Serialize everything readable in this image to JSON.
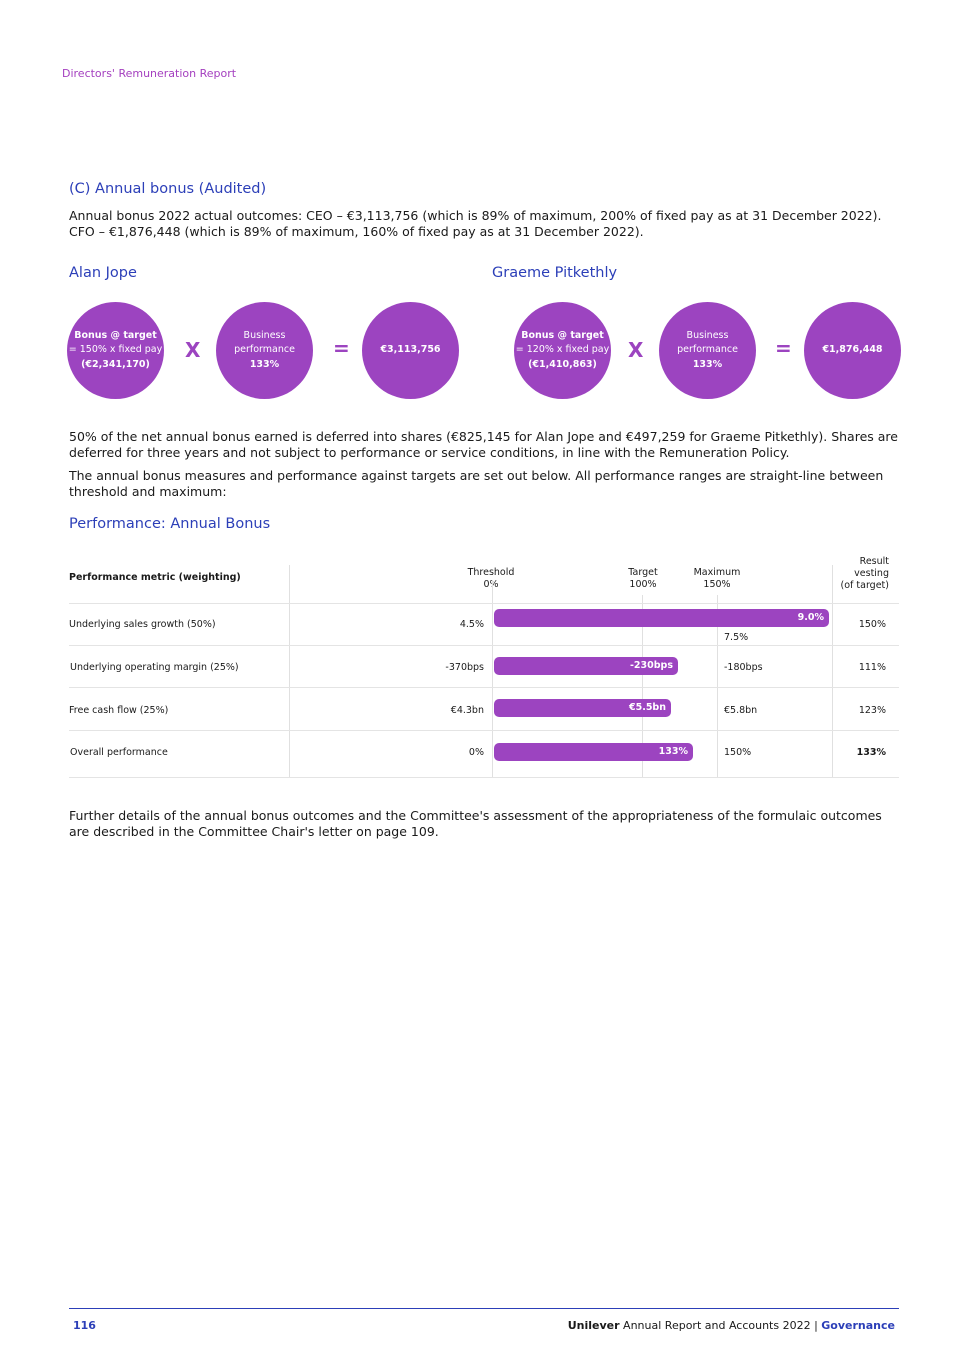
{
  "header": {
    "section": "Directors' Remuneration Report"
  },
  "section": {
    "title": "(C) Annual bonus (Audited)",
    "intro_line1": "Annual bonus 2022 actual outcomes: CEO – €3,113,756 (which is 89% of maximum, 200% of fixed pay as at 31 December 2022).",
    "intro_line2": "CFO – €1,876,448 (which is 89% of maximum, 160% of fixed pay as at 31 December 2022)."
  },
  "directors": [
    {
      "name": "Alan Jope",
      "target_label": "Bonus @ target",
      "target_formula": "= 150% x fixed pay",
      "target_amount": "(€2,341,170)",
      "perf_line1": "Business",
      "perf_line2": "performance",
      "perf_value": "133%",
      "times": "X",
      "equals": "=",
      "result": "€3,113,756"
    },
    {
      "name": "Graeme Pitkethly",
      "target_label": "Bonus @ target",
      "target_formula": "= 120% x fixed pay",
      "target_amount": "(€1,410,863)",
      "perf_line1": "Business",
      "perf_line2": "performance",
      "perf_value": "133%",
      "times": "X",
      "equals": "=",
      "result": "€1,876,448"
    }
  ],
  "body": {
    "deferral": "50% of the net annual bonus earned is deferred into shares (€825,145 for Alan Jope and €497,259 for Graeme Pitkethly). Shares are deferred for three years and not subject to performance or service conditions, in line with the Remuneration Policy.",
    "measures": "The annual bonus measures and performance against targets are set out below. All performance ranges are straight-line between threshold and maximum:",
    "further": "Further details of the annual bonus outcomes and the Committee's assessment of the appropriateness of the formulaic outcomes are described in the Committee Chair's letter on page 109."
  },
  "table": {
    "title": "Performance: Annual Bonus",
    "headers": {
      "metric": "Performance metric (weighting)",
      "threshold": "Threshold",
      "threshold_pct": "0%",
      "target": "Target",
      "target_pct": "100%",
      "maximum": "Maximum",
      "maximum_pct": "150%",
      "result1": "Result",
      "result2": "vesting",
      "result3": "(of target)"
    },
    "rows": [
      {
        "metric": "Underlying sales growth (50%)",
        "threshold": "4.5%",
        "actual": "9.0%",
        "maximum": "7.5%",
        "result": "150%",
        "vesting_of_target_pct": 150
      },
      {
        "metric": "Underlying operating margin (25%)",
        "threshold": "-370bps",
        "actual": "-230bps",
        "maximum": "-180bps",
        "result": "111%",
        "vesting_of_target_pct": 111
      },
      {
        "metric": "Free cash flow (25%)",
        "threshold": "€4.3bn",
        "actual": "€5.5bn",
        "maximum": "€5.8bn",
        "result": "123%",
        "vesting_of_target_pct": 123
      },
      {
        "metric": "Overall performance",
        "threshold": "0%",
        "actual": "133%",
        "maximum": "150%",
        "result": "133%",
        "vesting_of_target_pct": 133
      }
    ]
  },
  "footer": {
    "page": "116",
    "brand": "Unilever",
    "report": " Annual Report and Accounts 2022 | ",
    "section": "Governance"
  },
  "colors": {
    "accent": "#9c44c0",
    "heading": "#2c3fb8"
  }
}
